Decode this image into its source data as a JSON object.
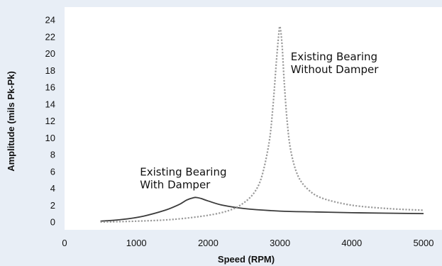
{
  "chart_data": {
    "type": "line",
    "title": "",
    "xlabel": "Speed (RPM)",
    "ylabel": "Amplitude (mils Pk-Pk)",
    "xlim": [
      0,
      5000
    ],
    "ylim": [
      0,
      24
    ],
    "x_ticks": [
      0,
      1000,
      2000,
      3000,
      4000,
      5000
    ],
    "y_ticks": [
      0,
      2,
      4,
      6,
      8,
      10,
      12,
      14,
      16,
      18,
      20,
      22,
      24
    ],
    "grid": false,
    "legend": "none",
    "colors": {
      "background": "#e8eef6",
      "plot_background": "#ffffff",
      "with_damper": "#3a3a3a",
      "without_damper": "#9a9a9a"
    },
    "series": [
      {
        "name": "Existing Bearing With Damper",
        "style": "solid",
        "x": [
          500,
          800,
          1100,
          1400,
          1600,
          1700,
          1800,
          1850,
          1900,
          2000,
          2200,
          2500,
          3000,
          3500,
          4000,
          5000
        ],
        "y": [
          0.1,
          0.3,
          0.7,
          1.4,
          2.1,
          2.6,
          2.9,
          2.9,
          2.8,
          2.5,
          2.0,
          1.6,
          1.3,
          1.2,
          1.1,
          1.0
        ]
      },
      {
        "name": "Existing Bearing Without Damper",
        "style": "dotted",
        "x": [
          500,
          1000,
          1500,
          2000,
          2300,
          2500,
          2650,
          2750,
          2850,
          2900,
          2950,
          2980,
          3000,
          3030,
          3060,
          3100,
          3150,
          3250,
          3400,
          3600,
          4000,
          4500,
          5000
        ],
        "y": [
          0.0,
          0.1,
          0.3,
          0.8,
          1.4,
          2.3,
          3.6,
          5.5,
          9.5,
          13.5,
          19.0,
          22.0,
          23.2,
          21.0,
          16.5,
          12.0,
          8.5,
          5.5,
          3.8,
          2.8,
          2.0,
          1.6,
          1.4
        ]
      }
    ],
    "annotations": [
      {
        "lines": [
          "Existing Bearing",
          "With Damper"
        ],
        "x": 1050,
        "y": 5.5
      },
      {
        "lines": [
          "Existing Bearing",
          "Without Damper"
        ],
        "x": 3150,
        "y": 19.2
      }
    ]
  }
}
